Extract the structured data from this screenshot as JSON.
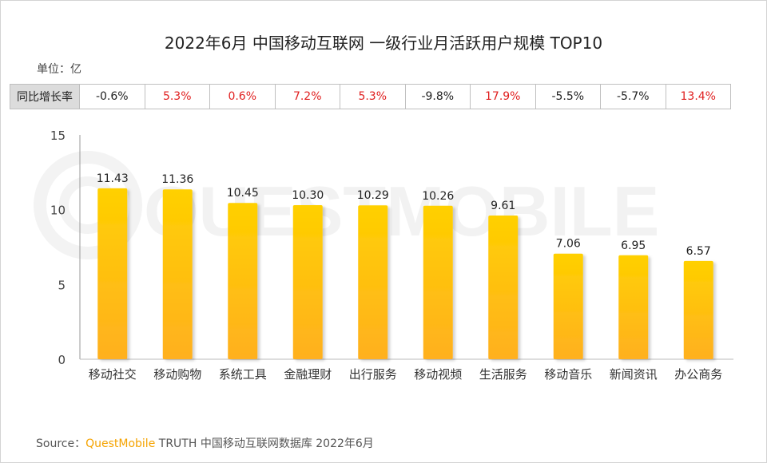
{
  "chart_data": {
    "type": "bar",
    "title": "2022年6月 中国移动互联网 一级行业月活跃用户规模 TOP10",
    "unit_label": "单位：亿",
    "categories": [
      "移动社交",
      "移动购物",
      "系统工具",
      "金融理财",
      "出行服务",
      "移动视频",
      "生活服务",
      "移动音乐",
      "新闻资讯",
      "办公商务"
    ],
    "values": [
      11.43,
      11.36,
      10.45,
      10.3,
      10.29,
      10.26,
      9.61,
      7.06,
      6.95,
      6.57
    ],
    "value_labels": [
      "11.43",
      "11.36",
      "10.45",
      "10.30",
      "10.29",
      "10.26",
      "9.61",
      "7.06",
      "6.95",
      "6.57"
    ],
    "yticks": [
      0,
      5,
      10,
      15
    ],
    "ylim": [
      0,
      15
    ],
    "bar_color_top": "#ffd000",
    "bar_color_bottom": "#ffb020",
    "growth_table": {
      "header": "同比增长率",
      "values": [
        "-0.6%",
        "5.3%",
        "0.6%",
        "7.2%",
        "5.3%",
        "-9.8%",
        "17.9%",
        "-5.5%",
        "-5.7%",
        "13.4%"
      ],
      "positive_color": "#e02020",
      "negative_color": "#222222"
    }
  },
  "source": {
    "prefix": "Source：",
    "brand": "QuestMobile",
    "suffix": "TRUTH 中国移动互联网数据库 2022年6月"
  },
  "watermark": "QUESTMOBILE"
}
